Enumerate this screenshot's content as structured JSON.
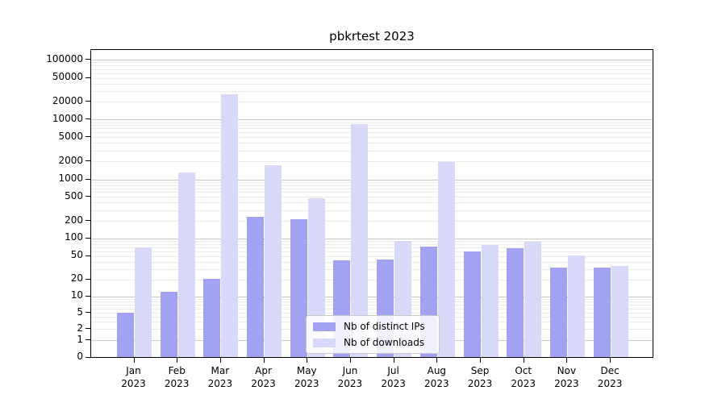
{
  "title": "pbkrtest 2023",
  "chart_data": {
    "type": "bar",
    "title": "pbkrtest 2023",
    "categories": [
      "Jan",
      "Feb",
      "Mar",
      "Apr",
      "May",
      "Jun",
      "Jul",
      "Aug",
      "Sep",
      "Oct",
      "Nov",
      "Dec"
    ],
    "year_label": "2023",
    "series": [
      {
        "name": "Nb of distinct IPs",
        "color": "#a2a2f2",
        "values": [
          5,
          12,
          20,
          230,
          210,
          42,
          43,
          71,
          59,
          66,
          31,
          31
        ]
      },
      {
        "name": "Nb of downloads",
        "color": "#d8d8f8",
        "values": [
          70,
          1300,
          26000,
          1700,
          460,
          8100,
          88,
          1900,
          75,
          87,
          51,
          33
        ]
      }
    ],
    "y_axis": {
      "scale": "log-with-zero",
      "ticks": [
        0,
        1,
        2,
        5,
        10,
        20,
        50,
        100,
        200,
        500,
        1000,
        2000,
        5000,
        10000,
        20000,
        50000,
        100000
      ]
    },
    "grid": true,
    "gridline_major_color": "#c8c8c8",
    "gridline_minor_color": "#ebebeb",
    "legend_position": "lower-center",
    "background_color": "#ffffff",
    "axis_color": "#000000"
  },
  "legend": {
    "items": [
      {
        "label": "Nb of distinct IPs",
        "color": "#a2a2f2"
      },
      {
        "label": "Nb of downloads",
        "color": "#d8d8f8"
      }
    ]
  }
}
